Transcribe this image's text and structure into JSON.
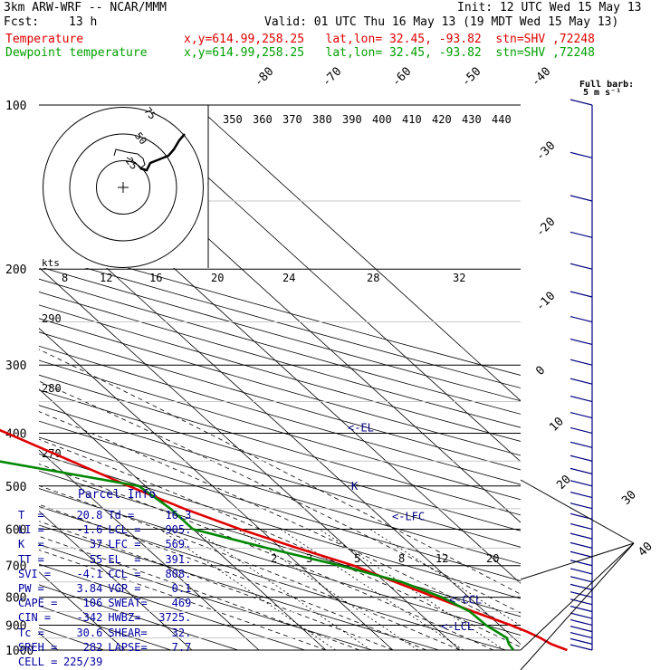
{
  "header": {
    "model": "3km ARW-WRF -- NCAR/MMM",
    "init": "Init: 12 UTC Wed 15 May 13",
    "fcst_label": "Fcst:",
    "fcst_value": "13 h",
    "valid": "Valid: 01 UTC Thu 16 May 13 (19 MDT Wed 15 May 13)",
    "temp_label": "Temperature",
    "temp_info": "x,y=614.99,258.25   lat,lon= 32.45, -93.82  stn=SHV ,72248",
    "dew_label": "Dewpoint temperature",
    "dew_info": "x,y=614.99,258.25   lat,lon= 32.45, -93.82  stn=SHV ,72248"
  },
  "colors": {
    "temperature": "#e00000",
    "dewpoint": "#008800",
    "parcel": "#000080",
    "grid": "#000000"
  },
  "chart_data": {
    "type": "line",
    "y_axis": "pressure (hPa)",
    "ylim": [
      1000,
      100
    ],
    "pressure_ticks": [
      "100",
      "200",
      "300",
      "400",
      "500",
      "600",
      "700",
      "800",
      "900",
      "1000"
    ],
    "pressure_values": [
      100,
      200,
      300,
      400,
      500,
      600,
      700,
      800,
      900,
      1000
    ],
    "isotherm_labels": [
      "-80",
      "-70",
      "-60",
      "-50",
      "-40",
      "-30",
      "-20",
      "-10",
      "0",
      "10",
      "20",
      "30",
      "40"
    ],
    "isotherm_values": [
      -80,
      -70,
      -60,
      -50,
      -40,
      -30,
      -20,
      -10,
      0,
      10,
      20,
      30,
      40
    ],
    "theta_labels": [
      "290",
      "280",
      "270"
    ],
    "theta_values": [
      290,
      280,
      270
    ],
    "theta_e_labels": [
      "350",
      "360",
      "370",
      "380",
      "390",
      "400",
      "410",
      "420",
      "430",
      "440"
    ],
    "mixing_ratio_labels": [
      "2",
      "3",
      "5",
      "8",
      "12",
      "20"
    ],
    "mixing_ratio_values": [
      2,
      3,
      5,
      8,
      12,
      20
    ],
    "upper_mixing_labels": [
      "8",
      "12",
      "16",
      "20",
      "24",
      "28",
      "32"
    ],
    "kts_label": "kts",
    "barb_legend": [
      "Full barb:",
      "5 m s⁻¹"
    ],
    "series": [
      {
        "name": "Temperature",
        "points": [
          [
            1000,
            26.0
          ],
          [
            975,
            24.6
          ],
          [
            950,
            24.0
          ],
          [
            925,
            23.0
          ],
          [
            900,
            21.7
          ],
          [
            850,
            18.3
          ],
          [
            800,
            15.0
          ],
          [
            750,
            11.5
          ],
          [
            700,
            8.0
          ],
          [
            650,
            2.5
          ],
          [
            600,
            -3.0
          ],
          [
            550,
            -8.0
          ],
          [
            500,
            -12.5
          ],
          [
            450,
            -17.0
          ],
          [
            400,
            -22.0
          ],
          [
            350,
            -28.0
          ],
          [
            300,
            -35.0
          ],
          [
            250,
            -44.0
          ],
          [
            200,
            -54.0
          ],
          [
            175,
            -60.0
          ],
          [
            150,
            -66.0
          ],
          [
            125,
            -70.0
          ],
          [
            100,
            -70.0
          ]
        ]
      },
      {
        "name": "Dewpoint temperature",
        "points": [
          [
            1000,
            18.0
          ],
          [
            975,
            18.3
          ],
          [
            950,
            19.0
          ],
          [
            925,
            18.5
          ],
          [
            900,
            18.0
          ],
          [
            850,
            17.8
          ],
          [
            800,
            16.0
          ],
          [
            750,
            12.5
          ],
          [
            700,
            6.0
          ],
          [
            650,
            -2.0
          ],
          [
            600,
            -10.0
          ],
          [
            550,
            -10.0
          ],
          [
            500,
            -11.0
          ],
          [
            450,
            -28.0
          ],
          [
            400,
            -48.0
          ],
          [
            350,
            -49.0
          ],
          [
            300,
            -54.0
          ],
          [
            250,
            -66.0
          ],
          [
            200,
            -70.0
          ],
          [
            150,
            -77.0
          ],
          [
            125,
            -82.0
          ],
          [
            100,
            -90.0
          ]
        ]
      }
    ],
    "parcel_levels": [
      {
        "label": "EL",
        "pressure": 391
      },
      {
        "label": "K",
        "pressure": 500
      },
      {
        "label": "LFC",
        "pressure": 569
      },
      {
        "label": "CCL",
        "pressure": 808
      },
      {
        "label": "LCL",
        "pressure": 905
      }
    ],
    "hodograph": {
      "ring_labels": [
        "75",
        "50",
        "25"
      ],
      "ring_values_kts": [
        75,
        50,
        25
      ]
    },
    "wind_barbs_pressure": [
      100,
      125,
      150,
      175,
      200,
      225,
      250,
      275,
      300,
      325,
      350,
      375,
      400,
      425,
      450,
      475,
      500,
      525,
      550,
      575,
      600,
      625,
      650,
      675,
      700,
      725,
      750,
      775,
      800,
      825,
      850,
      875,
      900,
      925,
      950,
      975,
      1000
    ],
    "wind_barbs_arrow_labels": [
      "30",
      "40"
    ]
  },
  "parcel_info": {
    "title": "Parcel Info",
    "rows": [
      [
        "T  =",
        "20.8",
        "Td =",
        "16.3"
      ],
      [
        "LI =",
        "-1.6",
        "LCL =",
        "905."
      ],
      [
        "K  =",
        "37",
        "LFC =",
        "569."
      ],
      [
        "TT =",
        "55",
        "EL  =",
        "391."
      ],
      [
        "SVI =",
        "-4.1",
        "CCL =",
        "808."
      ],
      [
        "PW =",
        "3.84",
        "VGP =",
        "0.1"
      ],
      [
        "CAPE =",
        "106",
        "SWEAT=",
        "469"
      ],
      [
        "CIN =",
        "-342",
        "HWBZ=",
        "3725."
      ],
      [
        "Tc =",
        "30.6",
        "SHEAR=",
        "32."
      ],
      [
        "SREH =",
        "282",
        "LAPSE=",
        "7.7"
      ],
      [
        "CELL =",
        "225/39",
        "",
        ""
      ]
    ]
  }
}
